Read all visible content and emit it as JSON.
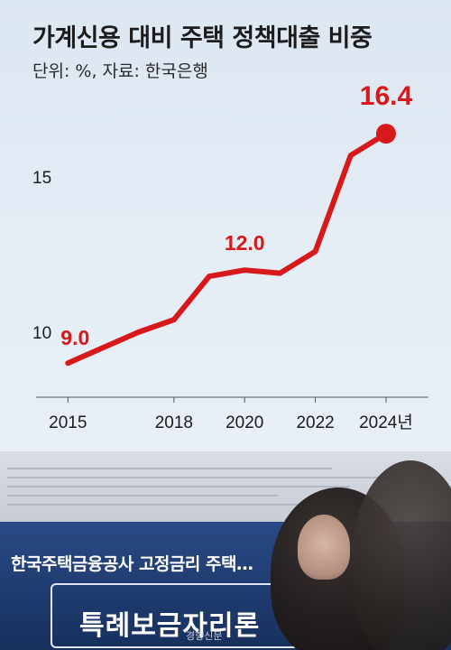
{
  "chart_data": {
    "type": "line",
    "title": "가계신용 대비 주택 정책대출 비중",
    "subtitle": "단위: %, 자료: 한국은행",
    "x": [
      2015,
      2016,
      2017,
      2018,
      2019,
      2020,
      2021,
      2022,
      2023,
      2024
    ],
    "series": [
      {
        "values": [
          9.0,
          9.5,
          10.0,
          10.4,
          11.8,
          12.0,
          11.9,
          12.6,
          15.7,
          16.4
        ]
      }
    ],
    "xticks": [
      "2015",
      "2018",
      "2020",
      "2022",
      "2024년"
    ],
    "xtick_values": [
      2015,
      2018,
      2020,
      2022,
      2024
    ],
    "yticks": [
      "10",
      "15"
    ],
    "ytick_values": [
      10,
      15
    ],
    "data_labels": [
      {
        "x": 2015,
        "value": "9.0"
      },
      {
        "x": 2020,
        "value": "12.0"
      },
      {
        "x": 2024,
        "value": "16.4"
      }
    ],
    "ylim": [
      7.9,
      17.8
    ],
    "xlim": [
      2014.1,
      2025.2
    ],
    "grid": false,
    "color": "#d7191c"
  },
  "photo": {
    "banner_line1": "한국주택금융공사 고정금리 주택…",
    "banner_line2": "특례보금자리론",
    "watermark": "경향신문"
  }
}
